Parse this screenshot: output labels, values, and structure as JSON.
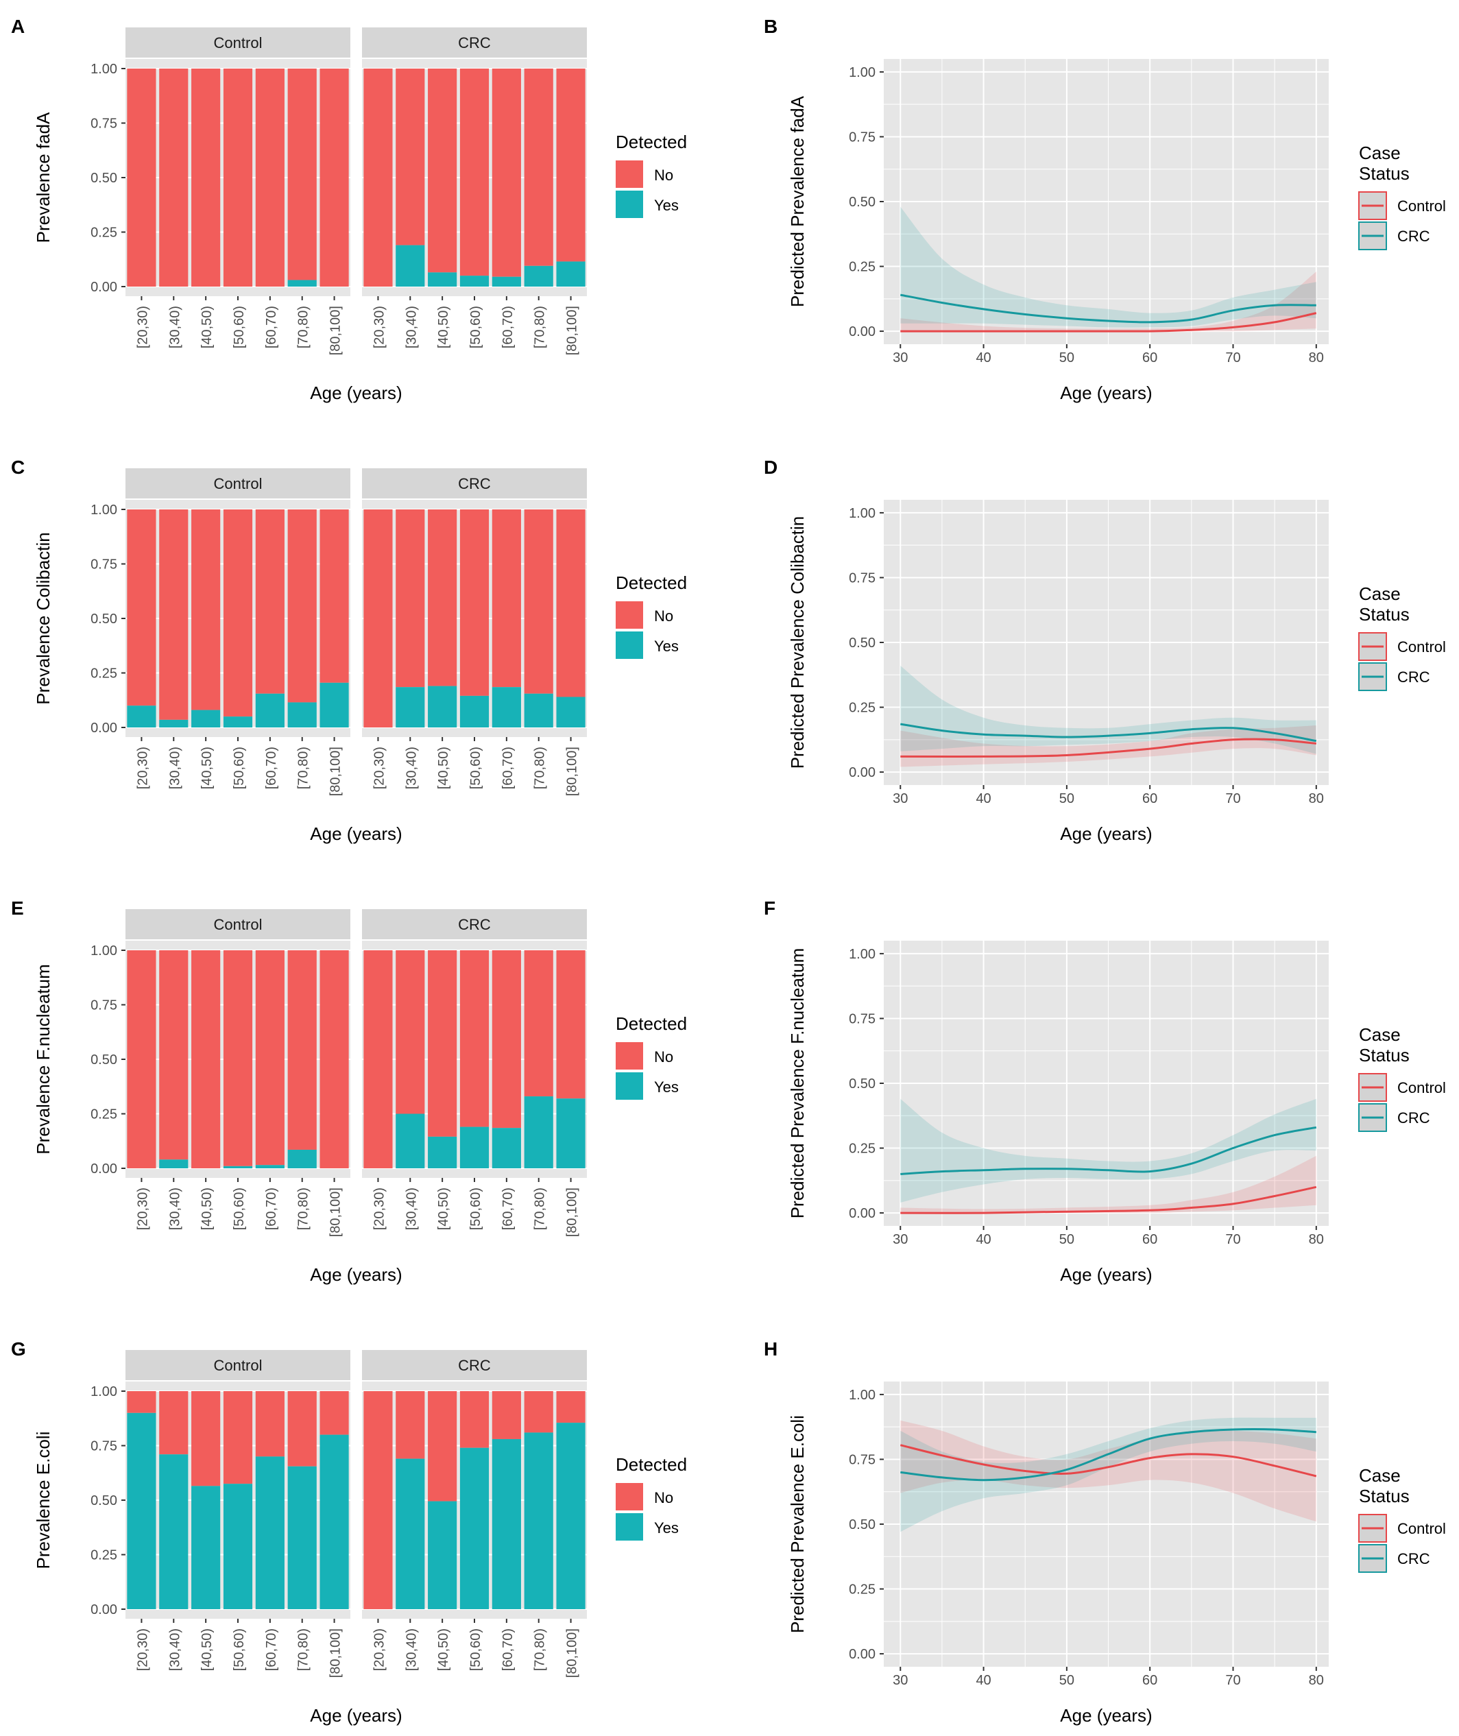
{
  "figure": {
    "categories": [
      "[20,30)",
      "[30,40)",
      "[40,50)",
      "[50,60)",
      "[60,70)",
      "[70,80)",
      "[80,100]"
    ],
    "facets": [
      "Control",
      "CRC"
    ],
    "bar_axis": {
      "xlabel": "Age (years)",
      "ylim": [
        0,
        1
      ],
      "yticks": [
        "0.00",
        "0.25",
        "0.50",
        "0.75",
        "1.00"
      ]
    },
    "curve_axis": {
      "xlabel": "Age (years)",
      "xlim": [
        28,
        81.5
      ],
      "xticks": [
        "30",
        "40",
        "50",
        "60",
        "70",
        "80"
      ],
      "ylim": [
        -0.05,
        1.05
      ],
      "yticks": [
        "0.00",
        "0.25",
        "0.50",
        "0.75",
        "1.00"
      ]
    },
    "detected_legend": {
      "title": "Detected",
      "items": [
        "No",
        "Yes"
      ]
    },
    "status_legend": {
      "title_line1": "Case",
      "title_line2": "Status",
      "items": [
        "Control",
        "CRC"
      ]
    },
    "colors": {
      "no": "#f25d5b",
      "yes": "#17b2b7",
      "control_line": "#e6474a",
      "crc_line": "#16999e",
      "panel_bg": "#e6e6e6",
      "strip_bg": "#d6d6d6",
      "grid": "#ffffff"
    }
  },
  "chart_data": [
    {
      "panel": "A",
      "type": "bar",
      "stacked": true,
      "ylabel": "Prevalence fadA",
      "categories": [
        "[20,30)",
        "[30,40)",
        "[40,50)",
        "[50,60)",
        "[60,70)",
        "[70,80)",
        "[80,100]"
      ],
      "facets": [
        {
          "name": "Control",
          "series": [
            {
              "name": "No",
              "values": [
                1,
                1,
                1,
                1,
                1,
                0.97,
                1
              ]
            },
            {
              "name": "Yes",
              "values": [
                0,
                0,
                0,
                0,
                0,
                0.03,
                0
              ]
            }
          ]
        },
        {
          "name": "CRC",
          "series": [
            {
              "name": "No",
              "values": [
                1,
                0.81,
                0.935,
                0.95,
                0.955,
                0.905,
                0.885
              ]
            },
            {
              "name": "Yes",
              "values": [
                0,
                0.19,
                0.065,
                0.05,
                0.045,
                0.095,
                0.115
              ]
            }
          ]
        }
      ],
      "ylim": [
        0,
        1
      ]
    },
    {
      "panel": "B",
      "type": "line",
      "ylabel": "Predicted Prevalence fadA",
      "xlabel": "Age (years)",
      "series": [
        {
          "name": "Control",
          "x": [
            30,
            40,
            50,
            60,
            65,
            70,
            75,
            80
          ],
          "y": [
            0.0,
            0.0,
            0.0,
            0.0,
            0.005,
            0.015,
            0.035,
            0.07
          ],
          "ci_low": [
            0.0,
            0.0,
            0.0,
            0.0,
            0.0,
            0.0,
            0.005,
            0.01
          ],
          "ci_high": [
            0.05,
            0.02,
            0.01,
            0.01,
            0.015,
            0.04,
            0.1,
            0.23
          ]
        },
        {
          "name": "CRC",
          "x": [
            30,
            35,
            40,
            45,
            50,
            55,
            60,
            65,
            70,
            75,
            80
          ],
          "y": [
            0.14,
            0.11,
            0.085,
            0.065,
            0.05,
            0.04,
            0.035,
            0.045,
            0.08,
            0.1,
            0.1
          ],
          "ci_low": [
            0.03,
            0.03,
            0.03,
            0.025,
            0.02,
            0.015,
            0.015,
            0.02,
            0.045,
            0.06,
            0.05
          ],
          "ci_high": [
            0.48,
            0.28,
            0.18,
            0.13,
            0.1,
            0.085,
            0.07,
            0.08,
            0.13,
            0.16,
            0.19
          ]
        }
      ],
      "xlim": [
        28,
        81.5
      ],
      "ylim": [
        -0.05,
        1.05
      ]
    },
    {
      "panel": "C",
      "type": "bar",
      "stacked": true,
      "ylabel": "Prevalence Colibactin",
      "categories": [
        "[20,30)",
        "[30,40)",
        "[40,50)",
        "[50,60)",
        "[60,70)",
        "[70,80)",
        "[80,100]"
      ],
      "facets": [
        {
          "name": "Control",
          "series": [
            {
              "name": "No",
              "values": [
                0.9,
                0.965,
                0.92,
                0.95,
                0.845,
                0.885,
                0.795
              ]
            },
            {
              "name": "Yes",
              "values": [
                0.1,
                0.035,
                0.08,
                0.05,
                0.155,
                0.115,
                0.205
              ]
            }
          ]
        },
        {
          "name": "CRC",
          "series": [
            {
              "name": "No",
              "values": [
                1,
                0.815,
                0.81,
                0.855,
                0.815,
                0.845,
                0.86
              ]
            },
            {
              "name": "Yes",
              "values": [
                0,
                0.185,
                0.19,
                0.145,
                0.185,
                0.155,
                0.14
              ]
            }
          ]
        }
      ],
      "ylim": [
        0,
        1
      ]
    },
    {
      "panel": "D",
      "type": "line",
      "ylabel": "Predicted Prevalence Colibactin",
      "xlabel": "Age (years)",
      "series": [
        {
          "name": "Control",
          "x": [
            30,
            40,
            50,
            60,
            65,
            70,
            75,
            80
          ],
          "y": [
            0.06,
            0.06,
            0.065,
            0.09,
            0.11,
            0.125,
            0.125,
            0.11
          ],
          "ci_low": [
            0.02,
            0.03,
            0.04,
            0.06,
            0.075,
            0.09,
            0.09,
            0.065
          ],
          "ci_high": [
            0.16,
            0.11,
            0.1,
            0.12,
            0.15,
            0.165,
            0.17,
            0.18
          ]
        },
        {
          "name": "CRC",
          "x": [
            30,
            35,
            40,
            45,
            50,
            55,
            60,
            65,
            70,
            75,
            80
          ],
          "y": [
            0.185,
            0.16,
            0.145,
            0.14,
            0.135,
            0.14,
            0.15,
            0.165,
            0.17,
            0.15,
            0.12
          ],
          "ci_low": [
            0.08,
            0.09,
            0.1,
            0.1,
            0.105,
            0.11,
            0.12,
            0.135,
            0.135,
            0.11,
            0.07
          ],
          "ci_high": [
            0.41,
            0.28,
            0.21,
            0.18,
            0.17,
            0.17,
            0.185,
            0.2,
            0.21,
            0.2,
            0.2
          ]
        }
      ],
      "xlim": [
        28,
        81.5
      ],
      "ylim": [
        -0.05,
        1.05
      ]
    },
    {
      "panel": "E",
      "type": "bar",
      "stacked": true,
      "ylabel": "Prevalence F.nucleatum",
      "categories": [
        "[20,30)",
        "[30,40)",
        "[40,50)",
        "[50,60)",
        "[60,70)",
        "[70,80)",
        "[80,100]"
      ],
      "facets": [
        {
          "name": "Control",
          "series": [
            {
              "name": "No",
              "values": [
                1,
                0.96,
                1,
                0.99,
                0.985,
                0.915,
                1
              ]
            },
            {
              "name": "Yes",
              "values": [
                0,
                0.04,
                0,
                0.01,
                0.015,
                0.085,
                0
              ]
            }
          ]
        },
        {
          "name": "CRC",
          "series": [
            {
              "name": "No",
              "values": [
                1,
                0.75,
                0.855,
                0.81,
                0.815,
                0.67,
                0.68
              ]
            },
            {
              "name": "Yes",
              "values": [
                0,
                0.25,
                0.145,
                0.19,
                0.185,
                0.33,
                0.32
              ]
            }
          ]
        }
      ],
      "ylim": [
        0,
        1
      ]
    },
    {
      "panel": "F",
      "type": "line",
      "ylabel": "Predicted Prevalence F.nucleatum",
      "xlabel": "Age (years)",
      "series": [
        {
          "name": "Control",
          "x": [
            30,
            40,
            50,
            60,
            65,
            70,
            75,
            80
          ],
          "y": [
            0.0,
            0.0,
            0.005,
            0.01,
            0.02,
            0.035,
            0.065,
            0.1
          ],
          "ci_low": [
            0.0,
            0.0,
            0.0,
            0.0,
            0.005,
            0.01,
            0.02,
            0.03
          ],
          "ci_high": [
            0.02,
            0.015,
            0.02,
            0.03,
            0.05,
            0.08,
            0.14,
            0.22
          ]
        },
        {
          "name": "CRC",
          "x": [
            30,
            35,
            40,
            45,
            50,
            55,
            60,
            65,
            70,
            75,
            80
          ],
          "y": [
            0.15,
            0.16,
            0.165,
            0.17,
            0.17,
            0.165,
            0.16,
            0.19,
            0.25,
            0.3,
            0.33
          ],
          "ci_low": [
            0.04,
            0.08,
            0.11,
            0.13,
            0.135,
            0.13,
            0.13,
            0.15,
            0.2,
            0.24,
            0.24
          ],
          "ci_high": [
            0.44,
            0.31,
            0.25,
            0.22,
            0.21,
            0.2,
            0.2,
            0.23,
            0.3,
            0.38,
            0.44
          ]
        }
      ],
      "xlim": [
        28,
        81.5
      ],
      "ylim": [
        -0.05,
        1.05
      ]
    },
    {
      "panel": "G",
      "type": "bar",
      "stacked": true,
      "ylabel": "Prevalence E.coli",
      "categories": [
        "[20,30)",
        "[30,40)",
        "[40,50)",
        "[50,60)",
        "[60,70)",
        "[70,80)",
        "[80,100]"
      ],
      "facets": [
        {
          "name": "Control",
          "series": [
            {
              "name": "No",
              "values": [
                0.1,
                0.29,
                0.435,
                0.425,
                0.3,
                0.345,
                0.2
              ]
            },
            {
              "name": "Yes",
              "values": [
                0.9,
                0.71,
                0.565,
                0.575,
                0.7,
                0.655,
                0.8
              ]
            }
          ]
        },
        {
          "name": "CRC",
          "series": [
            {
              "name": "No",
              "values": [
                1,
                0.31,
                0.505,
                0.26,
                0.22,
                0.19,
                0.145
              ]
            },
            {
              "name": "Yes",
              "values": [
                0,
                0.69,
                0.495,
                0.74,
                0.78,
                0.81,
                0.855
              ]
            }
          ]
        }
      ],
      "ylim": [
        0,
        1
      ]
    },
    {
      "panel": "H",
      "type": "line",
      "ylabel": "Predicted Prevalence E.coli",
      "xlabel": "Age (years)",
      "series": [
        {
          "name": "Control",
          "x": [
            30,
            35,
            40,
            45,
            50,
            55,
            60,
            65,
            70,
            75,
            80
          ],
          "y": [
            0.805,
            0.765,
            0.73,
            0.705,
            0.695,
            0.72,
            0.755,
            0.77,
            0.76,
            0.725,
            0.685
          ],
          "ci_low": [
            0.62,
            0.66,
            0.67,
            0.65,
            0.64,
            0.65,
            0.67,
            0.66,
            0.62,
            0.56,
            0.51
          ],
          "ci_high": [
            0.9,
            0.86,
            0.8,
            0.76,
            0.75,
            0.79,
            0.83,
            0.86,
            0.86,
            0.85,
            0.83
          ]
        },
        {
          "name": "CRC",
          "x": [
            30,
            35,
            40,
            45,
            50,
            55,
            60,
            65,
            70,
            75,
            80
          ],
          "y": [
            0.7,
            0.68,
            0.67,
            0.68,
            0.71,
            0.77,
            0.83,
            0.855,
            0.865,
            0.865,
            0.855
          ],
          "ci_low": [
            0.47,
            0.55,
            0.6,
            0.62,
            0.65,
            0.72,
            0.78,
            0.81,
            0.82,
            0.81,
            0.78
          ],
          "ci_high": [
            0.86,
            0.78,
            0.74,
            0.74,
            0.77,
            0.82,
            0.87,
            0.9,
            0.91,
            0.91,
            0.91
          ]
        }
      ],
      "xlim": [
        28,
        81.5
      ],
      "ylim": [
        -0.05,
        1.05
      ]
    }
  ]
}
